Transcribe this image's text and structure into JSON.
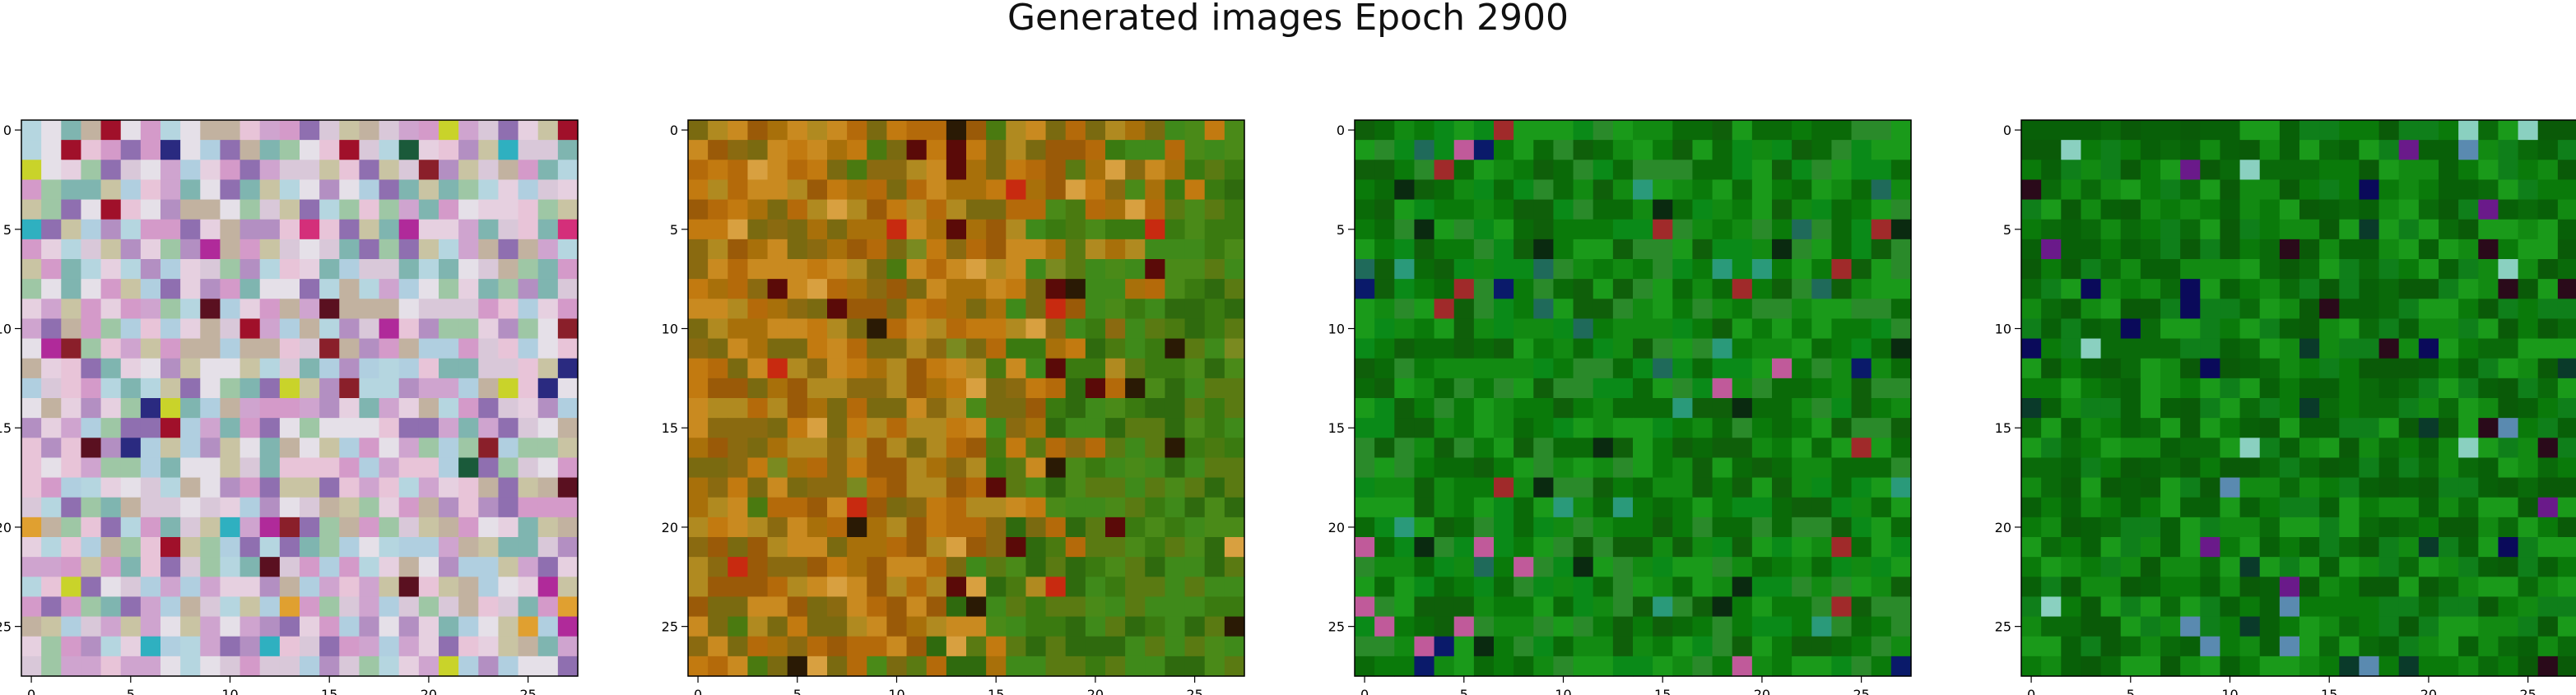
{
  "figure": {
    "title": "Generated images Epoch 2900"
  },
  "chart_data": {
    "type": "heatmap",
    "title": "Generated images Epoch 2900",
    "grid": false,
    "panels": [
      {
        "name": "",
        "grid_size": 28,
        "xlim": [
          -0.5,
          27.5
        ],
        "ylim": [
          27.5,
          -0.5
        ],
        "xticks": [
          0,
          5,
          10,
          15,
          20,
          25
        ],
        "yticks": [
          0,
          5,
          10,
          15,
          20,
          25
        ],
        "palette": [
          "#b38fc2",
          "#cfa4cf",
          "#d9c8d9",
          "#9ec7a5",
          "#e6d0e0",
          "#c2b2a0",
          "#8f6fb0",
          "#e5e0e8",
          "#b5d6e0",
          "#d49ac9",
          "#c9c4a3",
          "#7fb5b0",
          "#b0cfe0",
          "#e8c4d8"
        ],
        "accents": [
          "#8a1f2a",
          "#2a2a80",
          "#c9d32a",
          "#1a5a3a",
          "#d42f7a",
          "#a0102a",
          "#2fb0c0",
          "#e0a030",
          "#5a1020",
          "#b02a9a"
        ]
      },
      {
        "name": "",
        "grid_size": 28,
        "xlim": [
          -0.5,
          27.5
        ],
        "ylim": [
          27.5,
          -0.5
        ],
        "xticks": [
          0,
          5,
          10,
          15,
          20,
          25
        ],
        "yticks": [
          0,
          5,
          10,
          15,
          20,
          25
        ],
        "palette": [
          "#a8700a",
          "#c27a10",
          "#8a6a10",
          "#b08a20",
          "#9a5a08",
          "#c98a20",
          "#7a6a10",
          "#b46a0a"
        ],
        "accents": [
          "#5a0a08",
          "#c82a10",
          "#2a1a05",
          "#d8a040",
          "#7a8a20",
          "#4a7a10"
        ],
        "right_palette": [
          "#3a7a10",
          "#2f6a0e",
          "#4a8a18",
          "#5a7a12",
          "#3f8a1a"
        ]
      },
      {
        "name": "",
        "grid_size": 28,
        "xlim": [
          -0.5,
          27.5
        ],
        "ylim": [
          27.5,
          -0.5
        ],
        "xticks": [
          0,
          5,
          10,
          15,
          20,
          25
        ],
        "yticks": [
          0,
          5,
          10,
          15,
          20,
          25
        ],
        "palette": [
          "#0a7a0a",
          "#128a12",
          "#0a6a08",
          "#1a9a1a",
          "#0f5f0a",
          "#2a8a2a",
          "#0a8a18"
        ],
        "accents": [
          "#0a2a10",
          "#1f6a5a",
          "#c05a9a",
          "#a02a2a",
          "#0a1a6a",
          "#2a9a7a"
        ]
      },
      {
        "name": "",
        "grid_size": 28,
        "xlim": [
          -0.5,
          27.5
        ],
        "ylim": [
          27.5,
          -0.5
        ],
        "xticks": [
          0,
          5,
          10,
          15,
          20,
          25
        ],
        "yticks": [
          0,
          5,
          10,
          15,
          20,
          25
        ],
        "palette": [
          "#0a7a0a",
          "#0a6a0a",
          "#128a12",
          "#0a5a08",
          "#1a9a1a",
          "#086008",
          "#0f7f1a"
        ],
        "accents": [
          "#0a0a5a",
          "#2a0a1a",
          "#6a1a8a",
          "#8ad0c0",
          "#5a8ab0",
          "#0a3a2a"
        ]
      }
    ]
  }
}
